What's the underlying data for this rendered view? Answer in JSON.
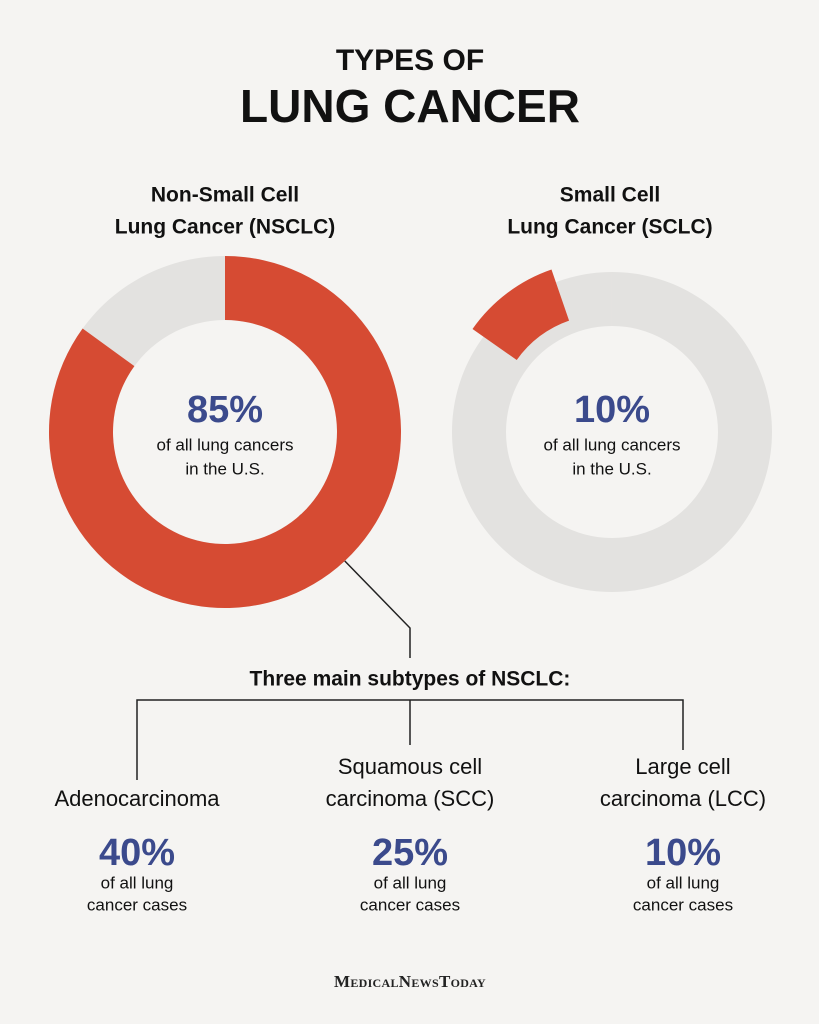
{
  "header": {
    "title": [
      "TYPES OF",
      "LUNG CANCER"
    ]
  },
  "chart_data": [
    {
      "type": "pie",
      "title": [
        "Non-Small Cell",
        "Lung Cancer (NSCLC)"
      ],
      "values": [
        85
      ],
      "value_labels": [
        "85%"
      ],
      "caption": [
        "of all lung cancers",
        "in the U.S."
      ],
      "color": "#d64b33",
      "rest_color": "#e3e2e0"
    },
    {
      "type": "pie",
      "title": [
        "Small Cell",
        "Lung Cancer (SCLC)"
      ],
      "values": [
        10
      ],
      "value_labels": [
        "10%"
      ],
      "caption": [
        "of all lung cancers",
        "in the U.S."
      ],
      "color": "#d64b33",
      "rest_color": "#e3e2e0"
    }
  ],
  "subtypes": {
    "title": "Three main subtypes of NSCLC:",
    "items": [
      {
        "name": [
          "Adenocarcinoma"
        ],
        "percent": "40%",
        "note": [
          "of all lung",
          "cancer cases"
        ]
      },
      {
        "name": [
          "Squamous cell",
          "carcinoma (SCC)"
        ],
        "percent": "25%",
        "note": [
          "of all lung",
          "cancer cases"
        ]
      },
      {
        "name": [
          "Large cell",
          "carcinoma (LCC)"
        ],
        "percent": "10%",
        "note": [
          "of all lung",
          "cancer cases"
        ]
      }
    ]
  },
  "footer": {
    "brand": "MedicalNewsToday"
  }
}
